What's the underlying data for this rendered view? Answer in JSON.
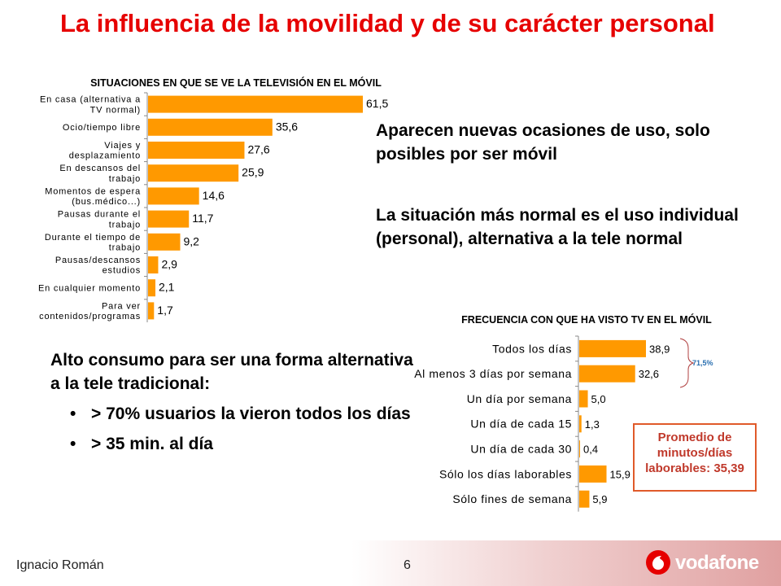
{
  "slide": {
    "title": "La influencia de la movilidad y de su carácter personal",
    "text1": "Aparecen nuevas ocasiones de uso, solo posibles por ser móvil",
    "text2": "La situación más normal es el uso individual (personal), alternativa a la tele normal",
    "text3": "Alto consumo para ser una forma alternativa a la tele tradicional:",
    "bullet1": "> 70% usuarios la vieron todos los días",
    "bullet2": "> 35 min. al día",
    "bullet_symbol": "•",
    "brace_label": "71,5%",
    "promo": "Promedio de minutos/días laborables: 35,39",
    "footer_name": "Ignacio Román",
    "page_number": "6",
    "logo_text": "vodafone",
    "colors": {
      "title": "#e60000",
      "bar": "#ff9900",
      "brace": "#2a6fb0",
      "promo": "#c0392b"
    }
  },
  "chart_data": [
    {
      "type": "bar",
      "orientation": "horizontal",
      "title": "SITUACIONES EN QUE SE VE LA TELEVISIÓN EN EL MÓVIL",
      "categories": [
        [
          "En casa (alternativa a",
          "TV normal)"
        ],
        [
          "Ocio/tiempo libre"
        ],
        [
          "Viajes y",
          "desplazamiento"
        ],
        [
          "En descansos del",
          "trabajo"
        ],
        [
          "Momentos de espera",
          "(bus.médico...)"
        ],
        [
          "Pausas durante el",
          "trabajo"
        ],
        [
          "Durante el tiempo de",
          "trabajo"
        ],
        [
          "Pausas/descansos",
          "estudios"
        ],
        [
          "En cualquier momento"
        ],
        [
          "Para ver",
          "contenidos/programas"
        ]
      ],
      "values": [
        61.5,
        35.6,
        27.6,
        25.9,
        14.6,
        11.7,
        9.2,
        2.9,
        2.1,
        1.7
      ],
      "value_labels": [
        "61,5",
        "35,6",
        "27,6",
        "25,9",
        "14,6",
        "11,7",
        "9,2",
        "2,9",
        "2,1",
        "1,7"
      ],
      "xlim": [
        0,
        61.5
      ],
      "grid": false
    },
    {
      "type": "bar",
      "orientation": "horizontal",
      "title": "FRECUENCIA CON QUE HA VISTO TV EN EL MÓVIL",
      "categories": [
        [
          "Todos los días"
        ],
        [
          "Al menos 3 días por semana"
        ],
        [
          "Un día por semana"
        ],
        [
          "Un día de cada 15"
        ],
        [
          "Un día de cada 30"
        ],
        [
          "Sólo los días laborables"
        ],
        [
          "Sólo fines de semana"
        ]
      ],
      "values": [
        38.9,
        32.6,
        5.0,
        1.3,
        0.4,
        15.9,
        5.9
      ],
      "value_labels": [
        "38,9",
        "32,6",
        "5,0",
        "1,3",
        "0,4",
        "15,9",
        "5,9"
      ],
      "xlim": [
        0,
        38.9
      ],
      "grid": false
    }
  ]
}
